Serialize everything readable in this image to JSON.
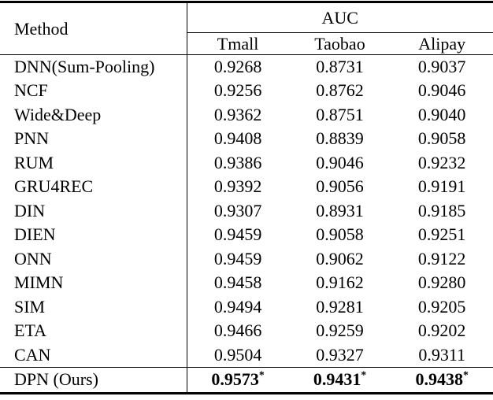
{
  "table": {
    "header": {
      "method_label": "Method",
      "group_label": "AUC",
      "columns": [
        "Tmall",
        "Taobao",
        "Alipay"
      ]
    },
    "rows": [
      {
        "method": "DNN(Sum-Pooling)",
        "values": [
          "0.9268",
          "0.8731",
          "0.9037"
        ]
      },
      {
        "method": "NCF",
        "values": [
          "0.9256",
          "0.8762",
          "0.9046"
        ]
      },
      {
        "method": "Wide&Deep",
        "values": [
          "0.9362",
          "0.8751",
          "0.9040"
        ]
      },
      {
        "method": "PNN",
        "values": [
          "0.9408",
          "0.8839",
          "0.9058"
        ]
      },
      {
        "method": "RUM",
        "values": [
          "0.9386",
          "0.9046",
          "0.9232"
        ]
      },
      {
        "method": "GRU4REC",
        "values": [
          "0.9392",
          "0.9056",
          "0.9191"
        ]
      },
      {
        "method": "DIN",
        "values": [
          "0.9307",
          "0.8931",
          "0.9185"
        ]
      },
      {
        "method": "DIEN",
        "values": [
          "0.9459",
          "0.9058",
          "0.9251"
        ]
      },
      {
        "method": "ONN",
        "values": [
          "0.9459",
          "0.9062",
          "0.9122"
        ]
      },
      {
        "method": "MIMN",
        "values": [
          "0.9458",
          "0.9162",
          "0.9280"
        ]
      },
      {
        "method": "SIM",
        "values": [
          "0.9494",
          "0.9281",
          "0.9205"
        ]
      },
      {
        "method": "ETA",
        "values": [
          "0.9466",
          "0.9259",
          "0.9202"
        ]
      },
      {
        "method": "CAN",
        "values": [
          "0.9504",
          "0.9327",
          "0.9311"
        ]
      },
      {
        "method": "DPN (Ours)",
        "values": [
          "0.9573",
          "0.9431",
          "0.9438"
        ],
        "marker": "*",
        "highlight": true
      }
    ],
    "colors": {
      "text": "#000000",
      "background": "#ffffff",
      "rule": "#000000"
    }
  }
}
